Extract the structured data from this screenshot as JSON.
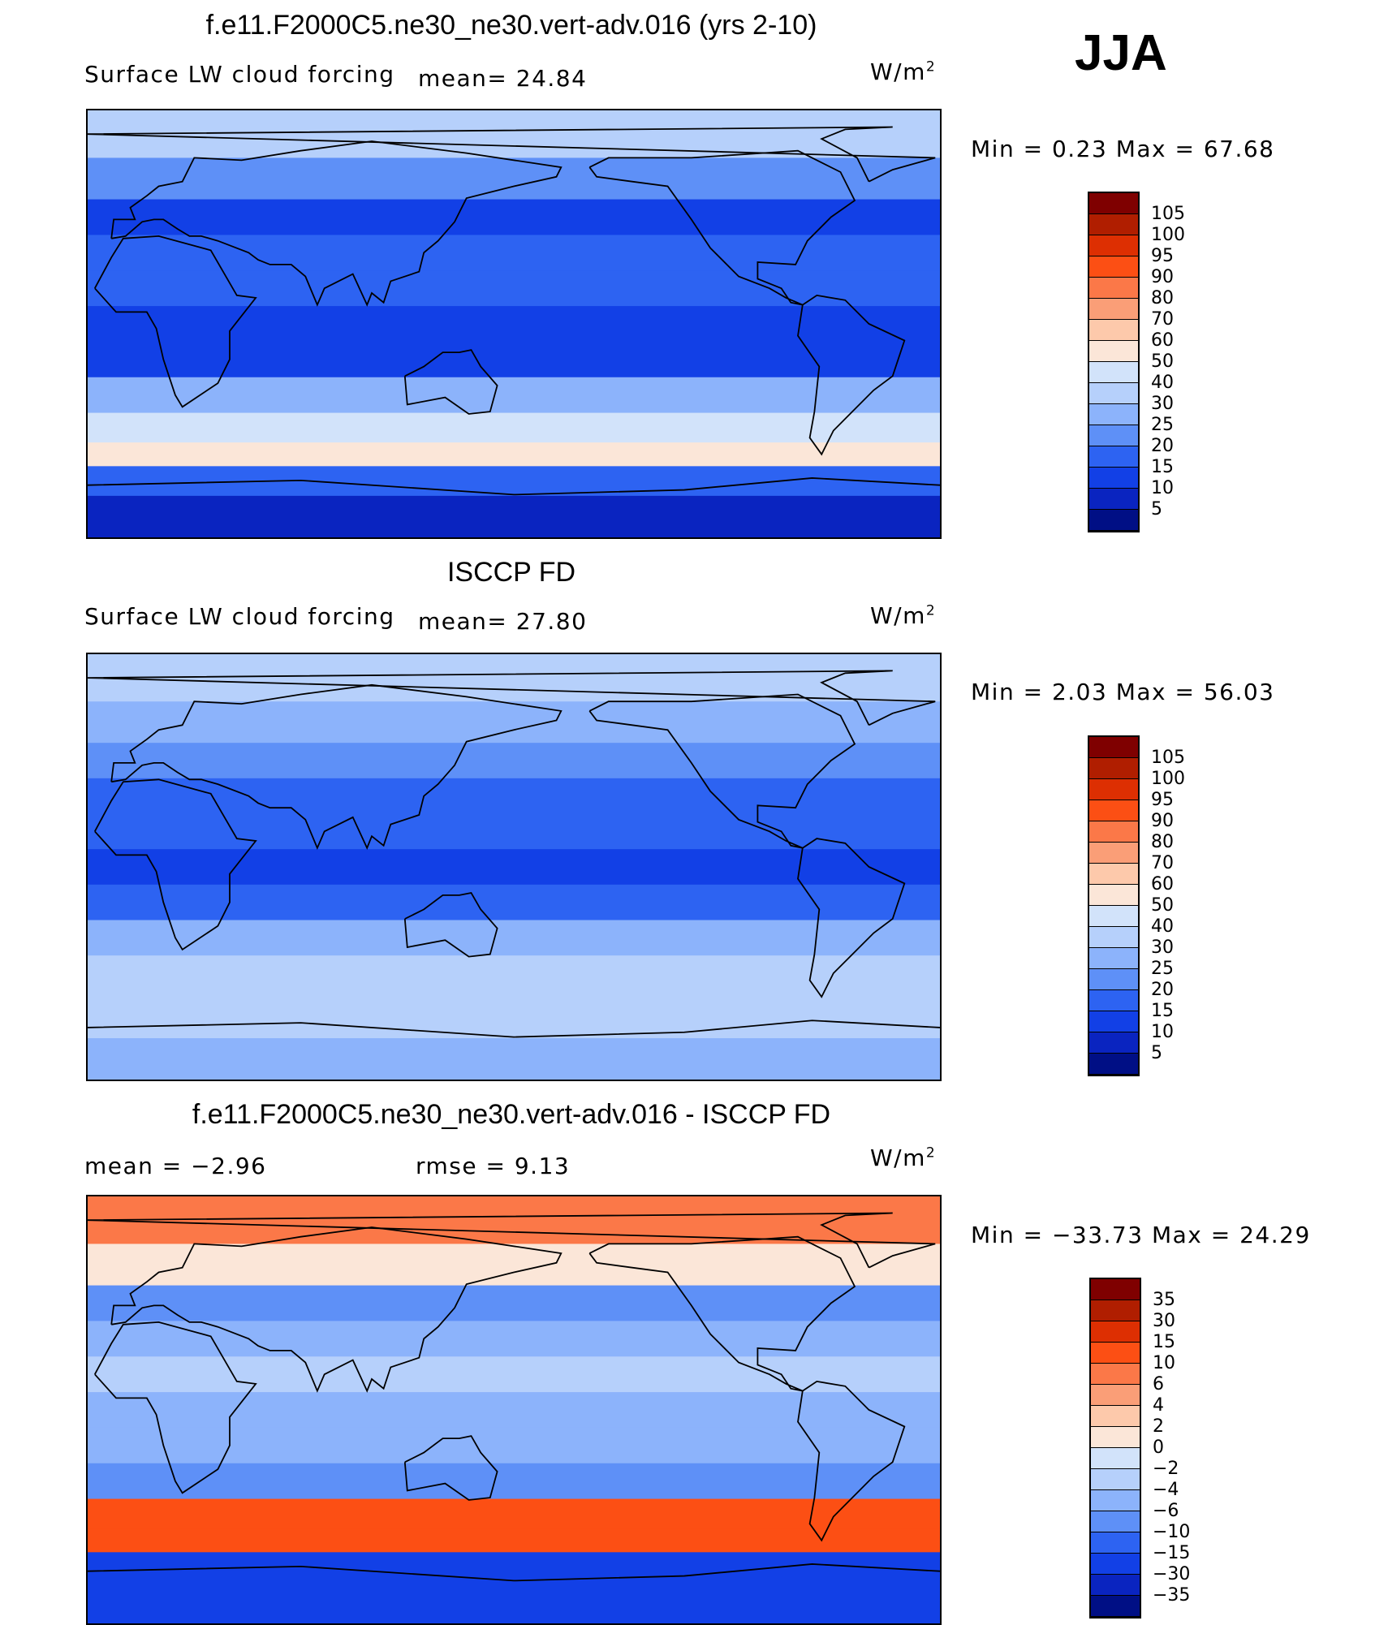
{
  "season_label": "JJA",
  "units": "W/m",
  "units_exp": "2",
  "panels": [
    {
      "title": "f.e11.F2000C5.ne30_ne30.vert-adv.016 (yrs 2-10)",
      "left_label": "Surface LW cloud forcing",
      "stat1": "mean=   24.84",
      "stat2": "",
      "minmax": "Min =    0.23 Max =   67.68"
    },
    {
      "title": "ISCCP FD",
      "left_label": "Surface LW cloud forcing",
      "stat1": "mean=   27.80",
      "stat2": "",
      "minmax": "Min =    2.03 Max =   56.03"
    },
    {
      "title": "f.e11.F2000C5.ne30_ne30.vert-adv.016 - ISCCP FD",
      "left_label": "mean =   −2.96",
      "stat1": "rmse =    9.13",
      "stat2": "",
      "minmax": "Min = −33.73 Max =   24.29"
    }
  ],
  "colorbars": {
    "abs": {
      "labels": [
        "105",
        "100",
        "95",
        "90",
        "80",
        "70",
        "60",
        "50",
        "40",
        "30",
        "25",
        "20",
        "15",
        "10",
        "5"
      ],
      "colors": [
        "#7f0000",
        "#b01e00",
        "#dd2f02",
        "#fc4f14",
        "#fb7848",
        "#fa9e77",
        "#fdc9ab",
        "#fbe6d8",
        "#d2e3fa",
        "#b6d0fb",
        "#8cb3fb",
        "#5e90f7",
        "#2d63f2",
        "#1240e6",
        "#0a24c0",
        "#000f85"
      ]
    },
    "diff": {
      "labels": [
        "35",
        "30",
        "15",
        "10",
        "6",
        "4",
        "2",
        "0",
        "−2",
        "−4",
        "−6",
        "−10",
        "−15",
        "−30",
        "−35"
      ],
      "colors": [
        "#7f0000",
        "#b01e00",
        "#dd2f02",
        "#fc4f14",
        "#fb7848",
        "#fa9e77",
        "#fdc9ab",
        "#fbe6d8",
        "#d2e3fa",
        "#b6d0fb",
        "#8cb3fb",
        "#5e90f7",
        "#2d63f2",
        "#1240e6",
        "#0a24c0",
        "#000f85"
      ]
    }
  },
  "chart_data": [
    {
      "type": "heatmap",
      "title": "f.e11.F2000C5.ne30_ne30.vert-adv.016 (yrs 2-10)",
      "subtitle": "Surface LW cloud forcing",
      "units": "W/m2",
      "mean": 24.84,
      "min": 0.23,
      "max": 67.68,
      "levels": [
        5,
        10,
        15,
        20,
        25,
        30,
        40,
        50,
        60,
        70,
        80,
        90,
        95,
        100,
        105
      ],
      "bands_by_latitude": [
        {
          "lat": 80,
          "value": 35
        },
        {
          "lat": 60,
          "value": 25
        },
        {
          "lat": 45,
          "value": 15
        },
        {
          "lat": 30,
          "value": 20
        },
        {
          "lat": 15,
          "value": 18
        },
        {
          "lat": 0,
          "value": 12
        },
        {
          "lat": -15,
          "value": 15
        },
        {
          "lat": -30,
          "value": 28
        },
        {
          "lat": -45,
          "value": 45
        },
        {
          "lat": -55,
          "value": 55
        },
        {
          "lat": -65,
          "value": 20
        },
        {
          "lat": -80,
          "value": 10
        }
      ]
    },
    {
      "type": "heatmap",
      "title": "ISCCP FD",
      "subtitle": "Surface LW cloud forcing",
      "units": "W/m2",
      "mean": 27.8,
      "min": 2.03,
      "max": 56.03,
      "levels": [
        5,
        10,
        15,
        20,
        25,
        30,
        40,
        50,
        60,
        70,
        80,
        90,
        95,
        100,
        105
      ],
      "bands_by_latitude": [
        {
          "lat": 80,
          "value": 32
        },
        {
          "lat": 60,
          "value": 28
        },
        {
          "lat": 45,
          "value": 22
        },
        {
          "lat": 30,
          "value": 20
        },
        {
          "lat": 15,
          "value": 18
        },
        {
          "lat": 0,
          "value": 15
        },
        {
          "lat": -15,
          "value": 18
        },
        {
          "lat": -30,
          "value": 30
        },
        {
          "lat": -45,
          "value": 38
        },
        {
          "lat": -55,
          "value": 40
        },
        {
          "lat": -65,
          "value": 35
        },
        {
          "lat": -80,
          "value": 30
        }
      ]
    },
    {
      "type": "heatmap",
      "title": "f.e11.F2000C5.ne30_ne30.vert-adv.016 - ISCCP FD",
      "units": "W/m2",
      "mean": -2.96,
      "rmse": 9.13,
      "min": -33.73,
      "max": 24.29,
      "levels": [
        -35,
        -30,
        -15,
        -10,
        -6,
        -4,
        -2,
        0,
        2,
        4,
        6,
        10,
        15,
        30,
        35
      ],
      "bands_by_latitude": [
        {
          "lat": 80,
          "value": 8
        },
        {
          "lat": 60,
          "value": 2
        },
        {
          "lat": 45,
          "value": -6
        },
        {
          "lat": 30,
          "value": -4
        },
        {
          "lat": 15,
          "value": -2
        },
        {
          "lat": 0,
          "value": -5
        },
        {
          "lat": -15,
          "value": -4
        },
        {
          "lat": -30,
          "value": -6
        },
        {
          "lat": -45,
          "value": 12
        },
        {
          "lat": -55,
          "value": 15
        },
        {
          "lat": -65,
          "value": -15
        },
        {
          "lat": -80,
          "value": -20
        }
      ]
    }
  ]
}
